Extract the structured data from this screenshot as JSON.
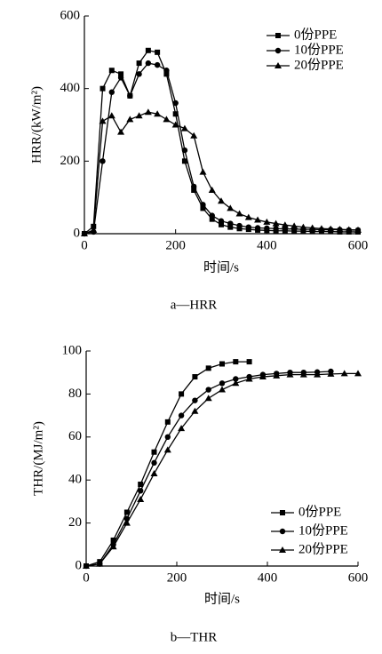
{
  "chart_data": [
    {
      "type": "line",
      "caption": "a—HRR",
      "xlabel": "时间/s",
      "ylabel": "HRR/(kW/m²)",
      "x": [
        0,
        20,
        40,
        60,
        80,
        100,
        120,
        140,
        160,
        180,
        200,
        220,
        240,
        260,
        280,
        300,
        320,
        340,
        360,
        380,
        400,
        420,
        440,
        460,
        480,
        500,
        520,
        540,
        560,
        580,
        600
      ],
      "series": [
        {
          "name": "0份PPE",
          "color": "#000000",
          "marker": "square",
          "values": [
            0,
            20,
            400,
            450,
            440,
            380,
            470,
            505,
            500,
            440,
            330,
            200,
            120,
            70,
            40,
            25,
            18,
            14,
            12,
            10,
            9,
            8,
            8,
            7,
            7,
            6,
            6,
            6,
            5,
            5,
            5
          ]
        },
        {
          "name": "10份PPE",
          "color": "#000000",
          "marker": "circle",
          "values": [
            0,
            5,
            200,
            390,
            430,
            380,
            440,
            470,
            465,
            450,
            360,
            230,
            130,
            80,
            50,
            35,
            28,
            22,
            18,
            16,
            15,
            14,
            13,
            13,
            12,
            12,
            11,
            11,
            11,
            10,
            10
          ]
        },
        {
          "name": "20份PPE",
          "color": "#000000",
          "marker": "triangle",
          "values": [
            0,
            10,
            310,
            325,
            280,
            315,
            325,
            335,
            330,
            315,
            300,
            290,
            270,
            170,
            120,
            90,
            70,
            55,
            45,
            38,
            32,
            28,
            24,
            21,
            18,
            16,
            14,
            13,
            12,
            11,
            10
          ]
        }
      ],
      "xlim": [
        0,
        600
      ],
      "xticks": [
        0,
        200,
        400,
        600
      ],
      "ylim": [
        0,
        600
      ],
      "yticks": [
        0,
        200,
        400,
        600
      ],
      "legend": "top-right"
    },
    {
      "type": "line",
      "caption": "b—THR",
      "xlabel": "时间/s",
      "ylabel": "THR/(MJ/m²)",
      "x": [
        0,
        30,
        60,
        90,
        120,
        150,
        180,
        210,
        240,
        270,
        300,
        330,
        360,
        390,
        420,
        450,
        480,
        510,
        540,
        570,
        600
      ],
      "series": [
        {
          "name": "0份PPE",
          "color": "#000000",
          "marker": "square",
          "values": [
            0,
            2,
            12,
            25,
            38,
            53,
            67,
            80,
            88,
            92,
            94,
            95,
            95,
            null,
            null,
            null,
            null,
            null,
            null,
            null,
            null
          ]
        },
        {
          "name": "10份PPE",
          "color": "#000000",
          "marker": "circle",
          "values": [
            0,
            1,
            10,
            22,
            35,
            48,
            60,
            70,
            77,
            82,
            85,
            87,
            88,
            89,
            89.5,
            90,
            90,
            90.2,
            90.5,
            null,
            null
          ]
        },
        {
          "name": "20份PPE",
          "color": "#000000",
          "marker": "triangle",
          "values": [
            0,
            1,
            9,
            20,
            31,
            43,
            54,
            64,
            72,
            78,
            82,
            85,
            87,
            88,
            88.5,
            89,
            89,
            89,
            89.3,
            89.5,
            89.5
          ]
        }
      ],
      "xlim": [
        0,
        600
      ],
      "xticks": [
        0,
        200,
        400,
        600
      ],
      "ylim": [
        0,
        100
      ],
      "yticks": [
        0,
        20,
        40,
        60,
        80,
        100
      ],
      "legend": "bottom-right"
    }
  ]
}
